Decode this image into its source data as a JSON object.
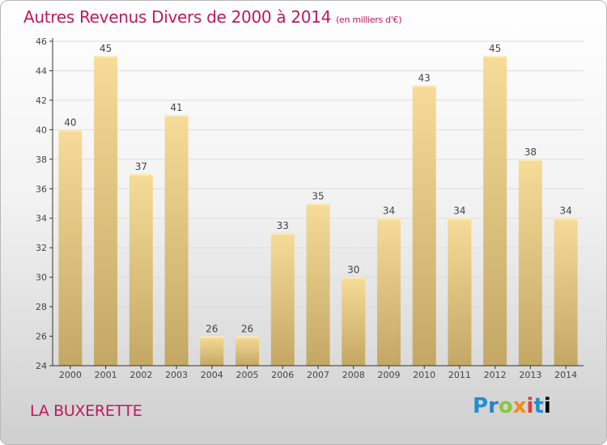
{
  "header": {
    "title": "Autres Revenus Divers de 2000 à 2014",
    "unit": "(en milliers d'€)"
  },
  "footer": {
    "place": "LA BUXERETTE",
    "brand": "Proxiti"
  },
  "colors": {
    "title": "#c2185b",
    "bar_top": "#f6dc98",
    "bar_bottom": "#c4a764",
    "axis": "#333333",
    "grid": "#dddddd"
  },
  "chart_data": {
    "type": "bar",
    "title": "Autres Revenus Divers de 2000 à 2014",
    "subtitle": "(en milliers d'€)",
    "categories": [
      "2000",
      "2001",
      "2002",
      "2003",
      "2004",
      "2005",
      "2006",
      "2007",
      "2008",
      "2009",
      "2010",
      "2011",
      "2012",
      "2013",
      "2014"
    ],
    "values": [
      40,
      45,
      37,
      41,
      26,
      26,
      33,
      35,
      30,
      34,
      43,
      34,
      45,
      38,
      34
    ],
    "ylim": [
      24,
      46
    ],
    "yticks": [
      24,
      26,
      28,
      30,
      32,
      34,
      36,
      38,
      40,
      42,
      44,
      46
    ],
    "xlabel": "",
    "ylabel": "",
    "grid": true,
    "legend": "none"
  }
}
